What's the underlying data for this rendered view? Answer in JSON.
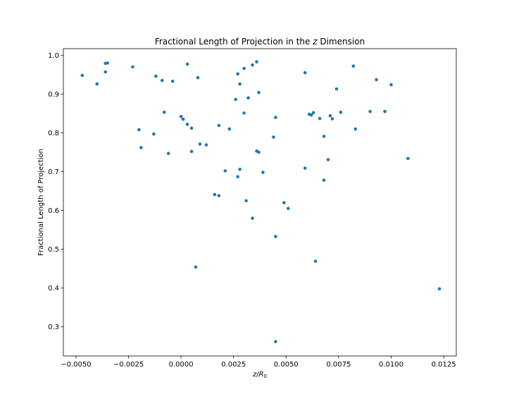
{
  "chart_data": {
    "type": "scatter",
    "title_prefix": "Fractional Length of Projection in the ",
    "title_var": "z",
    "title_suffix": " Dimension",
    "xlabel_var": "z",
    "xlabel_sep": "/",
    "xlabel_base": "R",
    "xlabel_sub": "0",
    "ylabel": "Fractional Length of Projection",
    "xlim": [
      -0.0056,
      0.0131
    ],
    "ylim": [
      0.225,
      1.017
    ],
    "xticks": [
      -0.005,
      -0.0025,
      0.0,
      0.0025,
      0.005,
      0.0075,
      0.01,
      0.0125
    ],
    "xtick_labels": [
      "−0.0050",
      "−0.0025",
      "0.0000",
      "0.0025",
      "0.0050",
      "0.0075",
      "0.0100",
      "0.0125"
    ],
    "yticks": [
      0.3,
      0.4,
      0.5,
      0.6,
      0.7,
      0.8,
      0.9,
      1.0
    ],
    "ytick_labels": [
      "0.3",
      "0.4",
      "0.5",
      "0.6",
      "0.7",
      "0.8",
      "0.9",
      "1.0"
    ],
    "grid": false,
    "marker_color": "#1f77b4",
    "points": [
      [
        -0.0047,
        0.948
      ],
      [
        -0.004,
        0.926
      ],
      [
        -0.0036,
        0.957
      ],
      [
        -0.0036,
        0.979
      ],
      [
        -0.0035,
        0.98
      ],
      [
        -0.0023,
        0.97
      ],
      [
        -0.002,
        0.808
      ],
      [
        -0.0019,
        0.762
      ],
      [
        -0.0013,
        0.797
      ],
      [
        -0.0012,
        0.946
      ],
      [
        -0.0009,
        0.935
      ],
      [
        -0.0008,
        0.853
      ],
      [
        -0.0006,
        0.747
      ],
      [
        -0.0004,
        0.933
      ],
      [
        0.0,
        0.842
      ],
      [
        0.0001,
        0.835
      ],
      [
        0.0003,
        0.822
      ],
      [
        0.0003,
        0.977
      ],
      [
        0.0005,
        0.812
      ],
      [
        0.0005,
        0.752
      ],
      [
        0.0007,
        0.454
      ],
      [
        0.0008,
        0.942
      ],
      [
        0.0009,
        0.771
      ],
      [
        0.0012,
        0.769
      ],
      [
        0.0016,
        0.641
      ],
      [
        0.0018,
        0.819
      ],
      [
        0.0018,
        0.638
      ],
      [
        0.0021,
        0.702
      ],
      [
        0.0023,
        0.81
      ],
      [
        0.0026,
        0.886
      ],
      [
        0.0027,
        0.687
      ],
      [
        0.0027,
        0.952
      ],
      [
        0.0028,
        0.926
      ],
      [
        0.0028,
        0.706
      ],
      [
        0.003,
        0.966
      ],
      [
        0.003,
        0.851
      ],
      [
        0.0031,
        0.625
      ],
      [
        0.0032,
        0.89
      ],
      [
        0.0034,
        0.975
      ],
      [
        0.0034,
        0.58
      ],
      [
        0.0036,
        0.983
      ],
      [
        0.0036,
        0.753
      ],
      [
        0.0037,
        0.75
      ],
      [
        0.0037,
        0.904
      ],
      [
        0.0039,
        0.698
      ],
      [
        0.0044,
        0.789
      ],
      [
        0.0045,
        0.533
      ],
      [
        0.0045,
        0.84
      ],
      [
        0.0045,
        0.262
      ],
      [
        0.0049,
        0.62
      ],
      [
        0.0051,
        0.605
      ],
      [
        0.0059,
        0.955
      ],
      [
        0.0059,
        0.709
      ],
      [
        0.0061,
        0.848
      ],
      [
        0.0062,
        0.846
      ],
      [
        0.0063,
        0.852
      ],
      [
        0.0064,
        0.469
      ],
      [
        0.0066,
        0.837
      ],
      [
        0.0068,
        0.678
      ],
      [
        0.0068,
        0.791
      ],
      [
        0.007,
        0.731
      ],
      [
        0.0071,
        0.844
      ],
      [
        0.0072,
        0.836
      ],
      [
        0.0074,
        0.913
      ],
      [
        0.0076,
        0.853
      ],
      [
        0.0082,
        0.972
      ],
      [
        0.0083,
        0.81
      ],
      [
        0.009,
        0.855
      ],
      [
        0.0093,
        0.937
      ],
      [
        0.0097,
        0.855
      ],
      [
        0.01,
        0.924
      ],
      [
        0.0108,
        0.734
      ],
      [
        0.0123,
        0.398
      ]
    ]
  }
}
